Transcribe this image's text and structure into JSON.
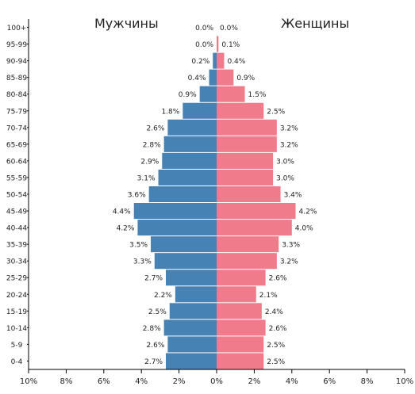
{
  "chart_data": {
    "type": "bar",
    "orientation": "horizontal-population-pyramid",
    "categories": [
      "0-4",
      "5-9",
      "10-14",
      "15-19",
      "20-24",
      "25-29",
      "30-34",
      "35-39",
      "40-44",
      "45-49",
      "50-54",
      "55-59",
      "60-64",
      "65-69",
      "70-74",
      "75-79",
      "80-84",
      "85-89",
      "90-94",
      "95-99",
      "100+"
    ],
    "series": [
      {
        "name": "Мужчины",
        "color": "#4682b4",
        "values": [
          2.7,
          2.6,
          2.8,
          2.5,
          2.2,
          2.7,
          3.3,
          3.5,
          4.2,
          4.4,
          3.6,
          3.1,
          2.9,
          2.8,
          2.6,
          1.8,
          0.9,
          0.4,
          0.2,
          0.0,
          0.0
        ],
        "labels": [
          "2.7%",
          "2.6%",
          "2.8%",
          "2.5%",
          "2.2%",
          "2.7%",
          "3.3%",
          "3.5%",
          "4.2%",
          "4.4%",
          "3.6%",
          "3.1%",
          "2.9%",
          "2.8%",
          "2.6%",
          "1.8%",
          "0.9%",
          "0.4%",
          "0.2%",
          "0.0%",
          "0.0%"
        ]
      },
      {
        "name": "Женщины",
        "color": "#f07b8a",
        "values": [
          2.5,
          2.5,
          2.6,
          2.4,
          2.1,
          2.6,
          3.2,
          3.3,
          4.0,
          4.2,
          3.4,
          3.0,
          3.0,
          3.2,
          3.2,
          2.5,
          1.5,
          0.9,
          0.4,
          0.1,
          0.0
        ],
        "labels": [
          "2.5%",
          "2.5%",
          "2.6%",
          "2.4%",
          "2.1%",
          "2.6%",
          "3.2%",
          "3.3%",
          "4.0%",
          "4.2%",
          "3.4%",
          "3.0%",
          "3.0%",
          "3.2%",
          "3.2%",
          "2.5%",
          "1.5%",
          "0.9%",
          "0.4%",
          "0.1%",
          "0.0%"
        ]
      }
    ],
    "xlim": [
      -10,
      10
    ],
    "x_ticks": [
      -10,
      -8,
      -6,
      -4,
      -2,
      0,
      2,
      4,
      6,
      8,
      10
    ],
    "x_tick_labels": [
      "10%",
      "8%",
      "6%",
      "4%",
      "2%",
      "0%",
      "2%",
      "4%",
      "6%",
      "8%",
      "10%"
    ],
    "legend": {
      "left": "Мужчины",
      "right": "Женщины"
    }
  }
}
